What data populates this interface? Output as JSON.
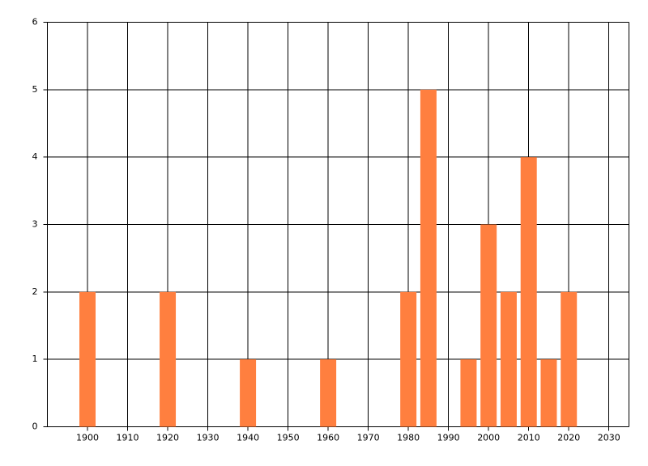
{
  "chart_data": {
    "type": "bar",
    "x": [
      1900,
      1920,
      1940,
      1960,
      1980,
      1985,
      1995,
      2000,
      2005,
      2010,
      2015,
      2020
    ],
    "values": [
      2,
      2,
      1,
      1,
      2,
      5,
      1,
      3,
      2,
      4,
      1,
      2
    ],
    "color": "#ff7f3f",
    "xlim": [
      1890,
      2035
    ],
    "xticks": [
      1900,
      1910,
      1920,
      1930,
      1940,
      1950,
      1960,
      1970,
      1980,
      1990,
      2000,
      2010,
      2020,
      2030
    ],
    "ylim": [
      0,
      6
    ],
    "yticks": [
      0,
      1,
      2,
      3,
      4,
      5,
      6
    ],
    "grid": true
  }
}
